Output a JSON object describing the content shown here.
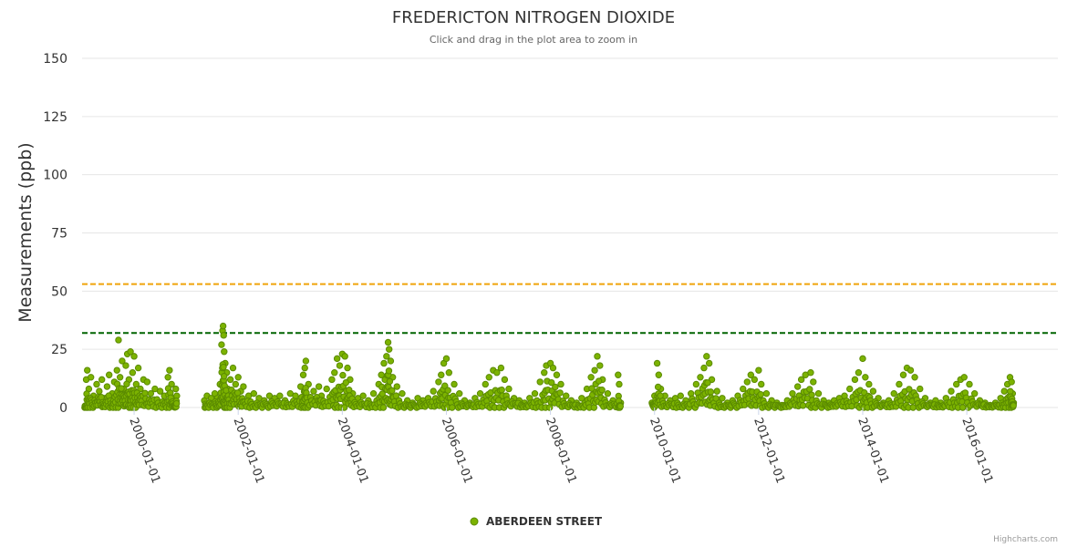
{
  "chart_data": {
    "type": "scatter",
    "title": "FREDERICTON NITROGEN DIOXIDE",
    "subtitle": "Click and drag in the plot area to zoom in",
    "ylabel": "Measurements (ppb)",
    "xlabel": "",
    "ylim": [
      0,
      150
    ],
    "yticks": [
      "0",
      "25",
      "50",
      "75",
      "100",
      "125",
      "150"
    ],
    "xlim": [
      1999.0,
      2017.75
    ],
    "xticks": [
      {
        "label": "2000-01-01",
        "value": 2000
      },
      {
        "label": "2002-01-01",
        "value": 2002
      },
      {
        "label": "2004-01-01",
        "value": 2004
      },
      {
        "label": "2006-01-01",
        "value": 2006
      },
      {
        "label": "2008-01-01",
        "value": 2008
      },
      {
        "label": "2010-01-01",
        "value": 2010
      },
      {
        "label": "2012-01-01",
        "value": 2012
      },
      {
        "label": "2014-01-01",
        "value": 2014
      },
      {
        "label": "2016-01-01",
        "value": 2016
      }
    ],
    "reference_lines": [
      {
        "value": 53,
        "color": "#f0a30a"
      },
      {
        "value": 32,
        "color": "#006400"
      }
    ],
    "series": [
      {
        "name": "ABERDEEN STREET",
        "color": "#7cb300",
        "stroke": "#5a8a00",
        "points": [
          [
            1999.05,
            0
          ],
          [
            1999.08,
            12
          ],
          [
            1999.1,
            16
          ],
          [
            1999.13,
            8
          ],
          [
            1999.17,
            13
          ],
          [
            1999.22,
            5
          ],
          [
            1999.28,
            10
          ],
          [
            1999.33,
            7
          ],
          [
            1999.38,
            12
          ],
          [
            1999.42,
            4
          ],
          [
            1999.48,
            9
          ],
          [
            1999.52,
            14
          ],
          [
            1999.58,
            6
          ],
          [
            1999.62,
            11
          ],
          [
            1999.67,
            16
          ],
          [
            1999.7,
            29
          ],
          [
            1999.73,
            13
          ],
          [
            1999.77,
            20
          ],
          [
            1999.8,
            8
          ],
          [
            1999.84,
            18
          ],
          [
            1999.87,
            23
          ],
          [
            1999.9,
            12
          ],
          [
            1999.93,
            24
          ],
          [
            1999.97,
            15
          ],
          [
            2000.0,
            22
          ],
          [
            2000.04,
            10
          ],
          [
            2000.08,
            17
          ],
          [
            2000.12,
            8
          ],
          [
            2000.18,
            12
          ],
          [
            2000.25,
            11
          ],
          [
            2000.32,
            6
          ],
          [
            2000.4,
            8
          ],
          [
            2000.5,
            7
          ],
          [
            2000.58,
            5
          ],
          [
            2000.65,
            13
          ],
          [
            2000.68,
            16
          ],
          [
            2000.72,
            10
          ],
          [
            2000.75,
            4
          ],
          [
            2000.78,
            1
          ],
          [
            2000.8,
            8
          ],
          [
            2000.82,
            5
          ],
          [
            2001.35,
            3
          ],
          [
            2001.4,
            5
          ],
          [
            2001.48,
            4
          ],
          [
            2001.55,
            6
          ],
          [
            2001.6,
            4
          ],
          [
            2001.65,
            10
          ],
          [
            2001.68,
            27
          ],
          [
            2001.7,
            33
          ],
          [
            2001.71,
            35
          ],
          [
            2001.72,
            31
          ],
          [
            2001.73,
            24
          ],
          [
            2001.75,
            19
          ],
          [
            2001.78,
            15
          ],
          [
            2001.8,
            8
          ],
          [
            2001.85,
            12
          ],
          [
            2001.9,
            17
          ],
          [
            2001.95,
            10
          ],
          [
            2002.0,
            13
          ],
          [
            2002.05,
            7
          ],
          [
            2002.1,
            9
          ],
          [
            2002.2,
            5
          ],
          [
            2002.3,
            6
          ],
          [
            2002.4,
            4
          ],
          [
            2002.5,
            3
          ],
          [
            2002.6,
            5
          ],
          [
            2002.7,
            4
          ],
          [
            2002.8,
            5
          ],
          [
            2002.9,
            3
          ],
          [
            2003.0,
            6
          ],
          [
            2003.1,
            5
          ],
          [
            2003.2,
            9
          ],
          [
            2003.25,
            14
          ],
          [
            2003.28,
            17
          ],
          [
            2003.3,
            20
          ],
          [
            2003.35,
            10
          ],
          [
            2003.45,
            7
          ],
          [
            2003.55,
            9
          ],
          [
            2003.6,
            5
          ],
          [
            2003.7,
            8
          ],
          [
            2003.8,
            12
          ],
          [
            2003.85,
            15
          ],
          [
            2003.9,
            21
          ],
          [
            2003.95,
            18
          ],
          [
            2004.0,
            23
          ],
          [
            2004.05,
            22
          ],
          [
            2004.1,
            17
          ],
          [
            2004.15,
            12
          ],
          [
            2004.2,
            6
          ],
          [
            2004.3,
            4
          ],
          [
            2004.4,
            5
          ],
          [
            2004.5,
            3
          ],
          [
            2004.6,
            6
          ],
          [
            2004.7,
            10
          ],
          [
            2004.75,
            14
          ],
          [
            2004.8,
            19
          ],
          [
            2004.85,
            22
          ],
          [
            2004.88,
            28
          ],
          [
            2004.9,
            25
          ],
          [
            2004.93,
            20
          ],
          [
            2004.97,
            13
          ],
          [
            2005.05,
            9
          ],
          [
            2005.15,
            6
          ],
          [
            2005.25,
            3
          ],
          [
            2005.35,
            2
          ],
          [
            2005.45,
            4
          ],
          [
            2005.55,
            3
          ],
          [
            2005.65,
            4
          ],
          [
            2005.75,
            7
          ],
          [
            2005.85,
            11
          ],
          [
            2005.9,
            14
          ],
          [
            2005.95,
            19
          ],
          [
            2006.0,
            21
          ],
          [
            2006.05,
            15
          ],
          [
            2006.15,
            10
          ],
          [
            2006.25,
            6
          ],
          [
            2006.35,
            3
          ],
          [
            2006.45,
            2
          ],
          [
            2006.55,
            4
          ],
          [
            2006.65,
            6
          ],
          [
            2006.75,
            10
          ],
          [
            2006.82,
            13
          ],
          [
            2006.9,
            16
          ],
          [
            2006.97,
            15
          ],
          [
            2007.05,
            17
          ],
          [
            2007.12,
            12
          ],
          [
            2007.2,
            8
          ],
          [
            2007.3,
            4
          ],
          [
            2007.4,
            3
          ],
          [
            2007.5,
            2
          ],
          [
            2007.6,
            4
          ],
          [
            2007.7,
            6
          ],
          [
            2007.8,
            11
          ],
          [
            2007.88,
            15
          ],
          [
            2007.92,
            18
          ],
          [
            2008.0,
            19
          ],
          [
            2008.05,
            17
          ],
          [
            2008.12,
            14
          ],
          [
            2008.2,
            10
          ],
          [
            2008.3,
            5
          ],
          [
            2008.4,
            3
          ],
          [
            2008.5,
            2
          ],
          [
            2008.6,
            4
          ],
          [
            2008.7,
            8
          ],
          [
            2008.78,
            13
          ],
          [
            2008.85,
            16
          ],
          [
            2008.9,
            22
          ],
          [
            2008.95,
            18
          ],
          [
            2009.0,
            12
          ],
          [
            2009.1,
            6
          ],
          [
            2009.2,
            3
          ],
          [
            2009.3,
            14
          ],
          [
            2009.32,
            10
          ],
          [
            2009.35,
            2
          ],
          [
            2009.95,
            2
          ],
          [
            2010.0,
            5
          ],
          [
            2010.05,
            19
          ],
          [
            2010.08,
            14
          ],
          [
            2010.12,
            8
          ],
          [
            2010.2,
            5
          ],
          [
            2010.3,
            3
          ],
          [
            2010.4,
            4
          ],
          [
            2010.5,
            5
          ],
          [
            2010.6,
            3
          ],
          [
            2010.7,
            6
          ],
          [
            2010.8,
            10
          ],
          [
            2010.88,
            13
          ],
          [
            2010.95,
            17
          ],
          [
            2011.0,
            22
          ],
          [
            2011.05,
            19
          ],
          [
            2011.1,
            12
          ],
          [
            2011.2,
            7
          ],
          [
            2011.3,
            4
          ],
          [
            2011.4,
            2
          ],
          [
            2011.5,
            3
          ],
          [
            2011.6,
            5
          ],
          [
            2011.7,
            8
          ],
          [
            2011.78,
            11
          ],
          [
            2011.85,
            14
          ],
          [
            2011.92,
            12
          ],
          [
            2012.0,
            16
          ],
          [
            2012.05,
            10
          ],
          [
            2012.15,
            6
          ],
          [
            2012.25,
            3
          ],
          [
            2012.35,
            2
          ],
          [
            2012.45,
            1
          ],
          [
            2012.55,
            3
          ],
          [
            2012.65,
            6
          ],
          [
            2012.75,
            9
          ],
          [
            2012.82,
            12
          ],
          [
            2012.9,
            14
          ],
          [
            2013.0,
            15
          ],
          [
            2013.05,
            11
          ],
          [
            2013.15,
            6
          ],
          [
            2013.25,
            3
          ],
          [
            2013.35,
            2
          ],
          [
            2013.45,
            3
          ],
          [
            2013.55,
            4
          ],
          [
            2013.65,
            5
          ],
          [
            2013.75,
            8
          ],
          [
            2013.85,
            12
          ],
          [
            2013.92,
            15
          ],
          [
            2014.0,
            21
          ],
          [
            2014.05,
            13
          ],
          [
            2014.12,
            10
          ],
          [
            2014.2,
            7
          ],
          [
            2014.3,
            4
          ],
          [
            2014.4,
            2
          ],
          [
            2014.5,
            3
          ],
          [
            2014.6,
            6
          ],
          [
            2014.7,
            10
          ],
          [
            2014.78,
            14
          ],
          [
            2014.85,
            17
          ],
          [
            2014.92,
            16
          ],
          [
            2015.0,
            13
          ],
          [
            2015.1,
            8
          ],
          [
            2015.2,
            4
          ],
          [
            2015.3,
            2
          ],
          [
            2015.4,
            3
          ],
          [
            2015.5,
            2
          ],
          [
            2015.6,
            4
          ],
          [
            2015.7,
            7
          ],
          [
            2015.8,
            10
          ],
          [
            2015.88,
            12
          ],
          [
            2015.95,
            13
          ],
          [
            2016.05,
            10
          ],
          [
            2016.15,
            6
          ],
          [
            2016.25,
            3
          ],
          [
            2016.35,
            2
          ],
          [
            2016.45,
            1
          ],
          [
            2016.55,
            2
          ],
          [
            2016.65,
            4
          ],
          [
            2016.72,
            7
          ],
          [
            2016.78,
            10
          ],
          [
            2016.83,
            13
          ],
          [
            2016.86,
            11
          ],
          [
            2016.88,
            6
          ],
          [
            2016.9,
            2
          ]
        ]
      }
    ],
    "legend": {
      "position": "bottom",
      "label": "ABERDEEN STREET"
    },
    "credits": "Highcharts.com"
  }
}
